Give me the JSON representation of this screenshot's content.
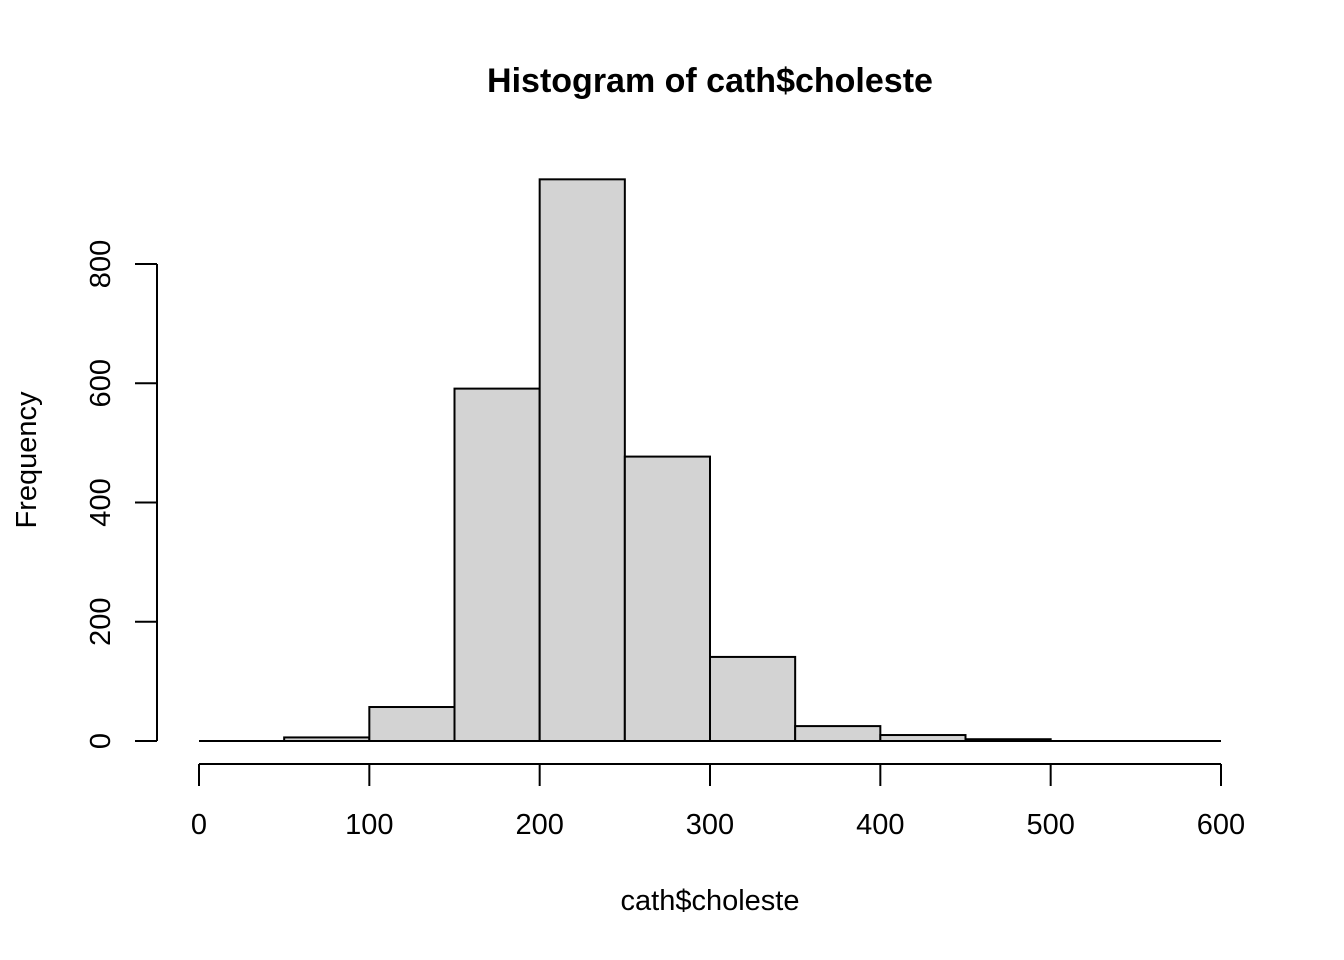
{
  "chart_data": {
    "type": "bar",
    "subtype": "histogram",
    "title": "Histogram of cath$choleste",
    "xlabel": "cath$choleste",
    "ylabel": "Frequency",
    "xlim": [
      0,
      600
    ],
    "ylim": [
      0,
      940
    ],
    "x_ticks": [
      0,
      100,
      200,
      300,
      400,
      500,
      600
    ],
    "y_ticks": [
      0,
      200,
      400,
      600,
      800
    ],
    "bins": [
      {
        "start": 0,
        "end": 50,
        "count": 0
      },
      {
        "start": 50,
        "end": 100,
        "count": 6
      },
      {
        "start": 100,
        "end": 150,
        "count": 57
      },
      {
        "start": 150,
        "end": 200,
        "count": 591
      },
      {
        "start": 200,
        "end": 250,
        "count": 942
      },
      {
        "start": 250,
        "end": 300,
        "count": 477
      },
      {
        "start": 300,
        "end": 350,
        "count": 141
      },
      {
        "start": 350,
        "end": 400,
        "count": 25
      },
      {
        "start": 400,
        "end": 450,
        "count": 10
      },
      {
        "start": 450,
        "end": 500,
        "count": 3
      },
      {
        "start": 500,
        "end": 550,
        "count": 0
      },
      {
        "start": 550,
        "end": 600,
        "count": 0
      }
    ],
    "bar_color": "#d3d3d3",
    "grid": false,
    "legend": "none"
  }
}
